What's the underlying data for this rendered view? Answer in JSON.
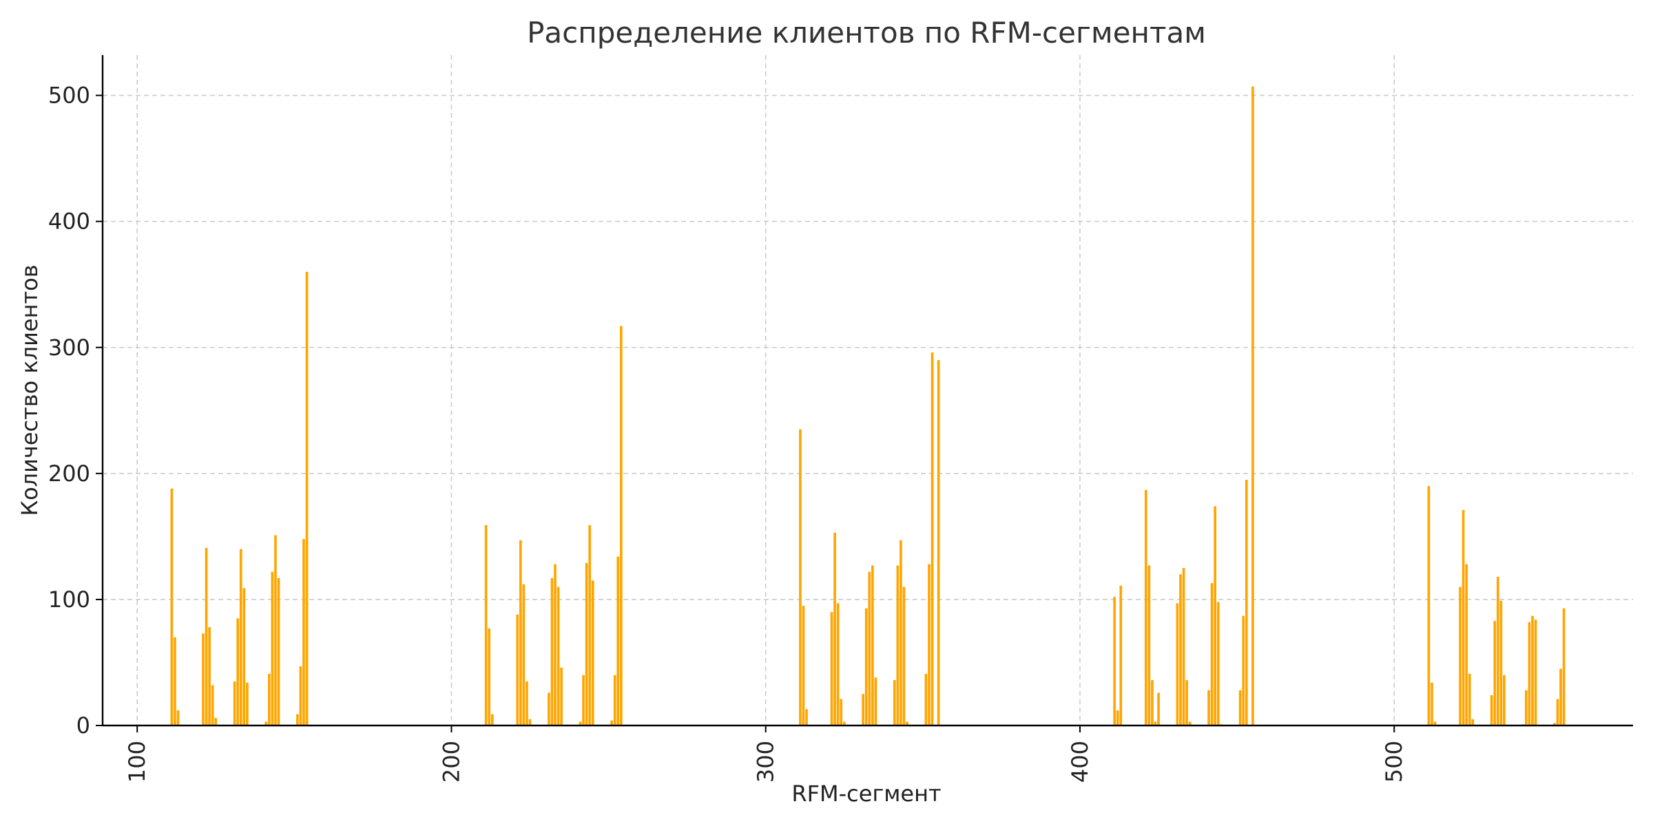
{
  "chart_data": {
    "type": "bar",
    "title": "Распределение клиентов по RFM-сегментам",
    "xlabel": "RFM-сегмент",
    "ylabel": "Количество клиентов",
    "xlim": [
      89,
      576
    ],
    "ylim": [
      0,
      532
    ],
    "x_ticks": [
      100,
      200,
      300,
      400,
      500
    ],
    "y_ticks": [
      0,
      100,
      200,
      300,
      400,
      500
    ],
    "grid": true,
    "color": "#FFA500",
    "x": [
      111,
      112,
      113,
      121,
      122,
      123,
      124,
      125,
      131,
      132,
      133,
      134,
      135,
      141,
      142,
      143,
      144,
      145,
      151,
      152,
      153,
      154,
      155,
      211,
      212,
      213,
      221,
      222,
      223,
      224,
      225,
      231,
      232,
      233,
      234,
      235,
      241,
      242,
      243,
      244,
      245,
      251,
      252,
      253,
      254,
      255,
      311,
      312,
      313,
      321,
      322,
      323,
      324,
      325,
      331,
      332,
      333,
      334,
      335,
      341,
      342,
      343,
      344,
      345,
      351,
      352,
      353,
      354,
      355,
      411,
      412,
      413,
      421,
      422,
      423,
      424,
      425,
      431,
      432,
      433,
      434,
      435,
      441,
      442,
      443,
      444,
      445,
      451,
      452,
      453,
      454,
      455,
      511,
      512,
      513,
      521,
      522,
      523,
      524,
      525,
      531,
      532,
      533,
      534,
      535,
      541,
      542,
      543,
      544,
      545,
      551,
      552,
      553,
      554,
      555
    ],
    "values": [
      188,
      70,
      12,
      73,
      141,
      78,
      32,
      6,
      35,
      85,
      140,
      109,
      34,
      3,
      41,
      122,
      151,
      117,
      9,
      47,
      148,
      360,
      0,
      159,
      77,
      9,
      88,
      147,
      112,
      35,
      5,
      26,
      117,
      128,
      110,
      46,
      3,
      40,
      129,
      159,
      115,
      4,
      40,
      134,
      317,
      0,
      235,
      95,
      13,
      90,
      153,
      97,
      21,
      3,
      25,
      93,
      122,
      127,
      38,
      36,
      127,
      147,
      110,
      3,
      41,
      128,
      296,
      0,
      290,
      102,
      12,
      111,
      187,
      127,
      36,
      3,
      26,
      97,
      120,
      125,
      36,
      3,
      28,
      113,
      174,
      98,
      1,
      28,
      87,
      195,
      0,
      507,
      190,
      34,
      3,
      110,
      171,
      128,
      41,
      5,
      24,
      83,
      118,
      99,
      40,
      1,
      28,
      82,
      87,
      84,
      2,
      21,
      45,
      93,
      0
    ]
  }
}
